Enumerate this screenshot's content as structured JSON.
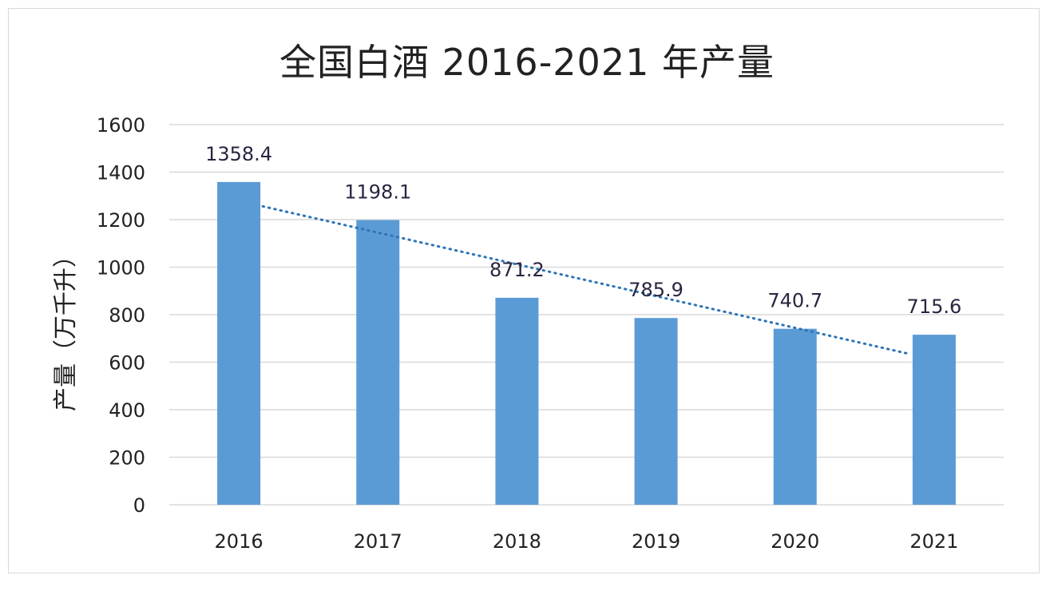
{
  "chart_data": {
    "type": "bar",
    "title": "全国白酒 2016-2021 年产量",
    "xlabel": "",
    "ylabel": "产量（万千升）",
    "categories": [
      "2016",
      "2017",
      "2018",
      "2019",
      "2020",
      "2021"
    ],
    "values": [
      1358.4,
      1198.1,
      871.2,
      785.9,
      740.7,
      715.6
    ],
    "value_labels": [
      "1358.4",
      "1198.1",
      "871.2",
      "785.9",
      "740.7",
      "715.6"
    ],
    "ylim": [
      0,
      1600
    ],
    "yticks": [
      0,
      200,
      400,
      600,
      800,
      1000,
      1200,
      1400,
      1600
    ],
    "ytick_labels": [
      "0",
      "200",
      "400",
      "600",
      "800",
      "1000",
      "1200",
      "1400",
      "1600"
    ],
    "grid": true,
    "trendline": {
      "type": "linear",
      "style": "dotted"
    },
    "colors": {
      "bar": "#5b9bd5",
      "trendline": "#2e75b6",
      "grid": "#d9d9d9"
    }
  }
}
